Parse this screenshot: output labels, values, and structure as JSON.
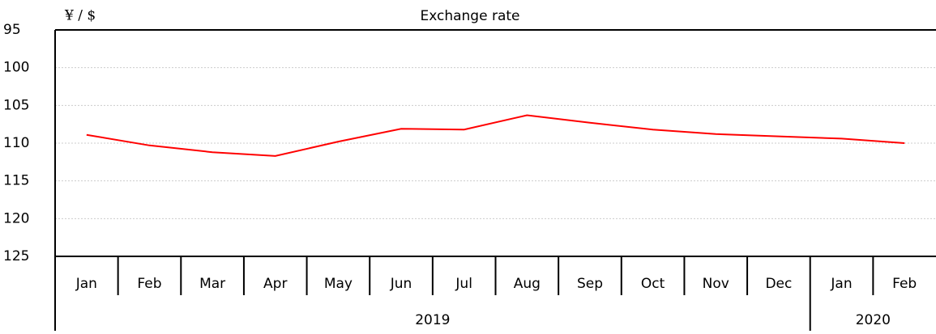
{
  "chart_data": {
    "type": "line",
    "title": "Exchange rate",
    "y_label": "¥ / $",
    "categories": [
      "Jan",
      "Feb",
      "Mar",
      "Apr",
      "May",
      "Jun",
      "Jul",
      "Aug",
      "Sep",
      "Oct",
      "Nov",
      "Dec",
      "Jan",
      "Feb"
    ],
    "years": [
      "2019",
      null,
      null,
      null,
      null,
      null,
      null,
      null,
      null,
      null,
      null,
      null,
      "2020",
      null
    ],
    "series": [
      {
        "color": "#ff0000",
        "values": [
          108.9,
          110.3,
          111.2,
          111.7,
          109.8,
          108.1,
          108.2,
          106.3,
          107.3,
          108.2,
          108.8,
          109.1,
          109.4,
          110.0
        ]
      }
    ],
    "ylim": [
      95,
      125
    ],
    "yticks": [
      95,
      100,
      105,
      110,
      115,
      120,
      125
    ],
    "y_inverted": true,
    "grid": true
  }
}
